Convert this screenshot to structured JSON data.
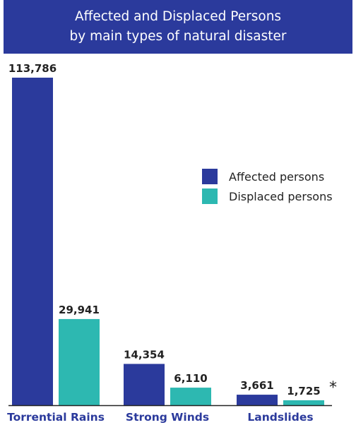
{
  "title_line1": "Affected and Displaced Persons",
  "title_line2": "by main types of natural disaster",
  "note_marker": "*",
  "colors": {
    "affected": "#2b3a9c",
    "displaced": "#2db8b1",
    "banner": "#2b3a9c"
  },
  "chart_data": {
    "type": "bar",
    "categories": [
      "Torrential Rains",
      "Strong Winds",
      "Landslides"
    ],
    "series": [
      {
        "name": "Affected persons",
        "values": [
          113786,
          14354,
          3661
        ],
        "labels": [
          "113,786",
          "14,354",
          "3,661"
        ]
      },
      {
        "name": "Displaced persons",
        "values": [
          29941,
          6110,
          1725
        ],
        "labels": [
          "29,941",
          "6,110",
          "1,725"
        ]
      }
    ],
    "ylim": [
      0,
      113786
    ],
    "grid": false,
    "legend_position": "right"
  }
}
